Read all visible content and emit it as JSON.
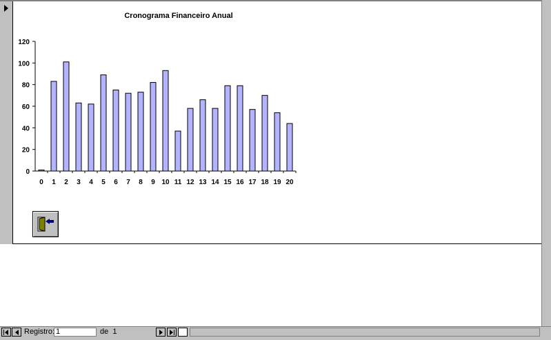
{
  "chart_data": {
    "type": "bar",
    "title": "Cronograma Financeiro Anual",
    "categories": [
      "0",
      "1",
      "2",
      "3",
      "4",
      "5",
      "6",
      "7",
      "8",
      "9",
      "10",
      "11",
      "12",
      "13",
      "14",
      "15",
      "16",
      "17",
      "18",
      "19",
      "20"
    ],
    "values": [
      1,
      83,
      101,
      63,
      62,
      89,
      75,
      72,
      73,
      82,
      93,
      37,
      58,
      66,
      58,
      79,
      79,
      57,
      70,
      54,
      44
    ],
    "ylim": [
      0,
      120
    ],
    "yticks": [
      0,
      20,
      40,
      60,
      80,
      100,
      120
    ],
    "grid": false,
    "legend": "none",
    "bar_color": "#b3b3ff"
  },
  "exit_button": {
    "icon": "exit-door-icon"
  },
  "navigation": {
    "record_label": "Registro:",
    "record_value": "1",
    "of_label": "de",
    "total": "1"
  }
}
